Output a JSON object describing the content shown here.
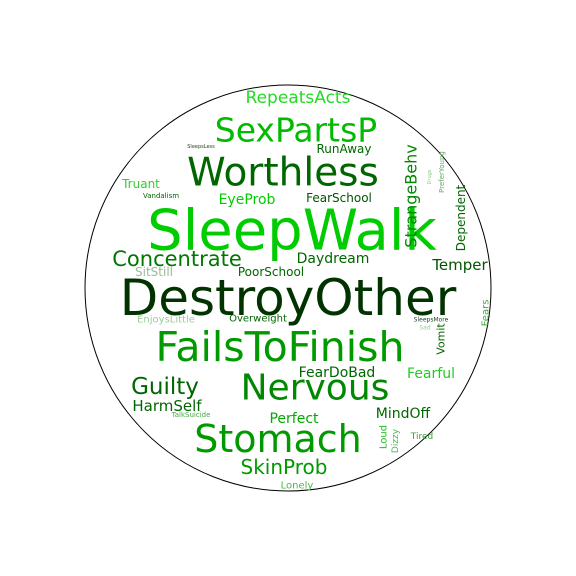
{
  "words": [
    {
      "text": "SleepWalk",
      "color": "#00cc00"
    },
    {
      "text": "DestroyOther",
      "color": "#003300"
    },
    {
      "text": "FailsToFinish",
      "color": "#009900"
    },
    {
      "text": "Worthless",
      "color": "#006600"
    },
    {
      "text": "SexPartsP",
      "color": "#00bb00"
    },
    {
      "text": "Nervous",
      "color": "#008800"
    },
    {
      "text": "Stomach",
      "color": "#009900"
    },
    {
      "text": "Concentrate",
      "color": "#007700"
    },
    {
      "text": "Guilty",
      "color": "#006600"
    },
    {
      "text": "SkinProb",
      "color": "#009900"
    },
    {
      "text": "RepeatsActs",
      "color": "#22dd22"
    },
    {
      "text": "StrangeBehv",
      "color": "#008800"
    },
    {
      "text": "Temper",
      "color": "#005500"
    },
    {
      "text": "HarmSelf",
      "color": "#006600"
    },
    {
      "text": "EyeProb",
      "color": "#00cc00"
    },
    {
      "text": "Daydream",
      "color": "#006600"
    },
    {
      "text": "FearDoBad",
      "color": "#006600"
    },
    {
      "text": "Fearful",
      "color": "#22cc22"
    },
    {
      "text": "Perfect",
      "color": "#00aa00"
    },
    {
      "text": "MindOff",
      "color": "#006600"
    },
    {
      "text": "RunAway",
      "color": "#006600"
    },
    {
      "text": "FearSchool",
      "color": "#005500"
    },
    {
      "text": "Dependent",
      "color": "#006600"
    },
    {
      "text": "Truant",
      "color": "#33cc33"
    },
    {
      "text": "SitStill",
      "color": "#99bb99"
    },
    {
      "text": "PoorSchool",
      "color": "#006600"
    },
    {
      "text": "Overweight",
      "color": "#006600"
    },
    {
      "text": "EnjoysLittle",
      "color": "#99cc99"
    },
    {
      "text": "Vomit",
      "color": "#006600"
    },
    {
      "text": "Fears",
      "color": "#44aa44"
    },
    {
      "text": "Loud",
      "color": "#22bb22"
    },
    {
      "text": "Dizzy",
      "color": "#44bb44"
    },
    {
      "text": "Lonely",
      "color": "#44bb44"
    },
    {
      "text": "Tired",
      "color": "#449944"
    },
    {
      "text": "PreferYoung",
      "color": "#66aa66"
    },
    {
      "text": "Vandalism",
      "color": "#006600"
    },
    {
      "text": "TalkSuicide",
      "color": "#44aa44"
    },
    {
      "text": "SleepsMore",
      "color": "#224422"
    },
    {
      "text": "Sad",
      "color": "#99cc99"
    },
    {
      "text": "SleepsLess",
      "color": "#224422"
    },
    {
      "text": "Drugs",
      "color": "#88cc88"
    }
  ],
  "colors": {
    "background": "#ffffff",
    "outline": "#000000"
  }
}
